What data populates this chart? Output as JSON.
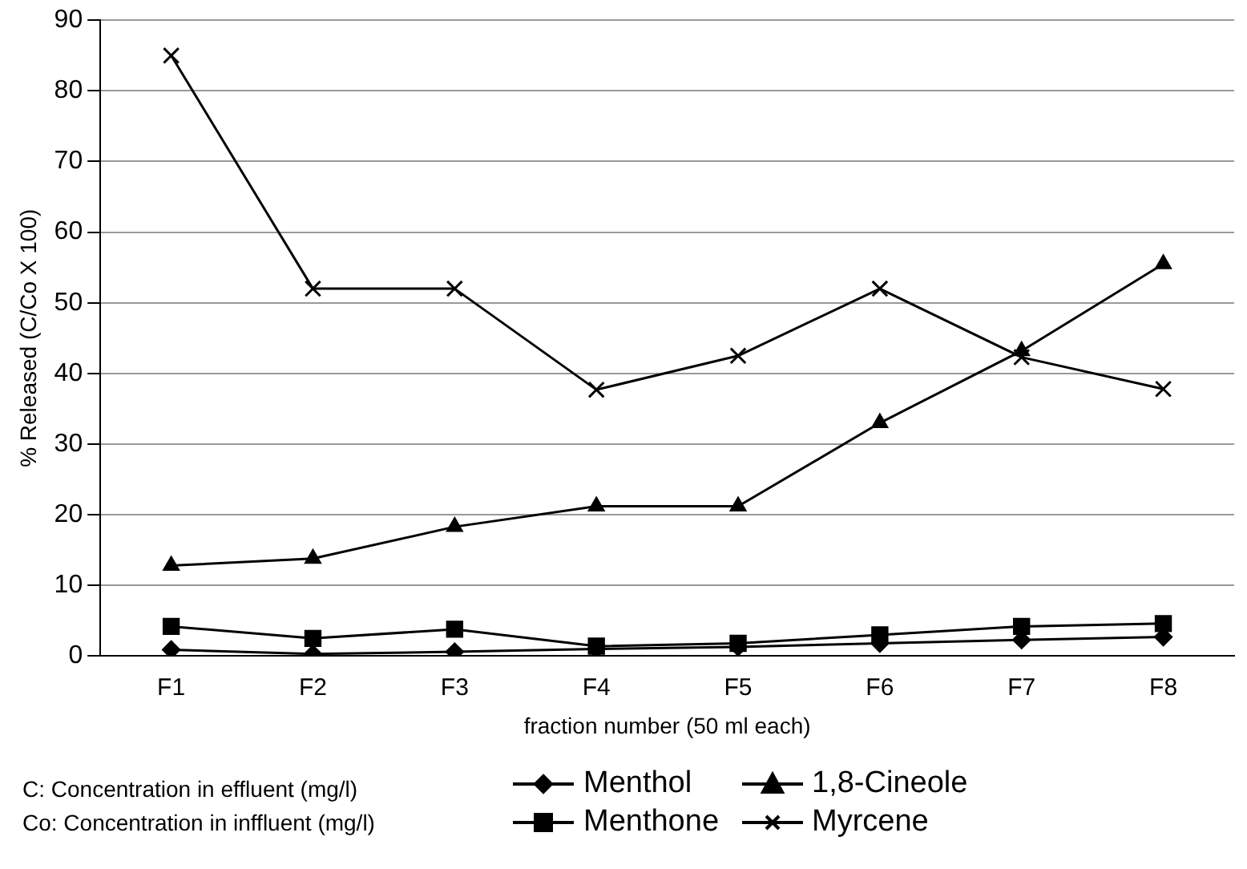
{
  "chart_data": {
    "type": "line",
    "xlabel": "fraction number (50 ml each)",
    "ylabel": "% Released (C/Co X 100)",
    "categories": [
      "F1",
      "F2",
      "F3",
      "F4",
      "F5",
      "F6",
      "F7",
      "F8"
    ],
    "series": [
      {
        "name": "Menthol",
        "color": "#000000",
        "marker": "diamond",
        "values": [
          0.9,
          0.3,
          0.6,
          1.0,
          1.3,
          1.8,
          2.3,
          2.7
        ]
      },
      {
        "name": "1,8-Cineole",
        "color": "#000000",
        "marker": "triangle",
        "values": [
          12.8,
          13.8,
          18.3,
          21.2,
          21.2,
          33,
          43.2,
          55.5
        ]
      },
      {
        "name": "Menthone",
        "color": "#000000",
        "marker": "square",
        "values": [
          4.2,
          2.5,
          3.8,
          1.4,
          1.8,
          3.0,
          4.2,
          4.6
        ]
      },
      {
        "name": "Myrcene",
        "color": "#000000",
        "marker": "cross",
        "values": [
          85,
          52,
          52,
          37.7,
          42.5,
          52,
          42.3,
          37.8
        ]
      }
    ],
    "ylim": [
      0,
      90
    ],
    "yticks": [
      0,
      10,
      20,
      30,
      40,
      50,
      60,
      70,
      80,
      90
    ],
    "grid": "y",
    "legend": "bottom",
    "line_style": "solid",
    "annotations": [
      "C: Concentration in effluent (mg/l)",
      "Co: Concentration in inffluent (mg/l)"
    ]
  }
}
